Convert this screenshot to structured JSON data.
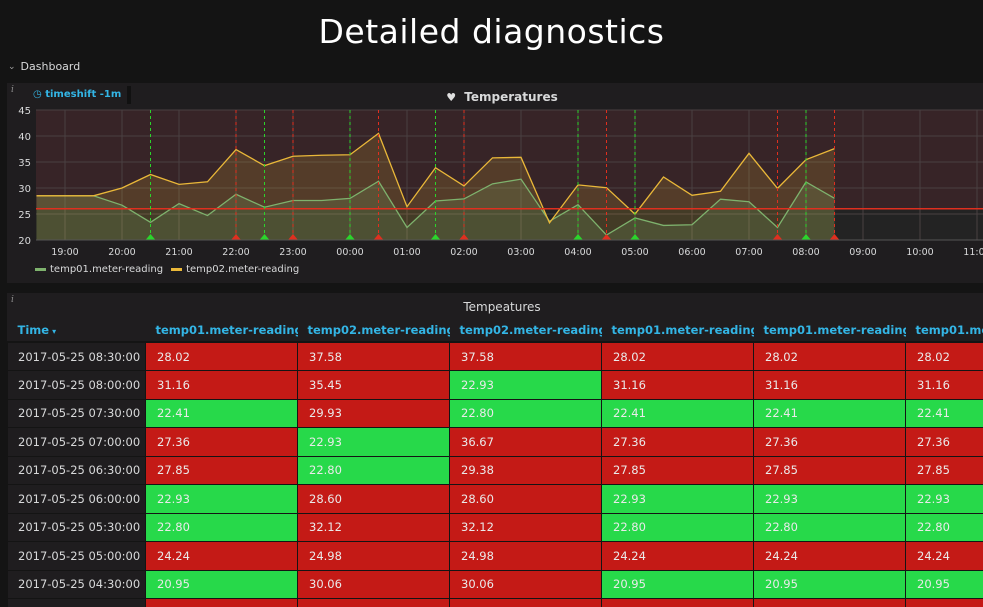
{
  "page_title": "Detailed diagnostics",
  "row": {
    "label": "Dashboard",
    "collapsed_icon": "chevron-down-icon"
  },
  "graph_panel": {
    "title": "Temperatures",
    "title_icon": "heart-icon",
    "info_icon": "i",
    "timeshift_label": "timeshift -1m",
    "timeshift_icon": "clock-icon"
  },
  "table_panel": {
    "title": "Tempeatures",
    "info_icon": "i",
    "columns": [
      "Time",
      "temp01.meter-reading",
      "temp02.meter-reading",
      "temp02.meter-reading",
      "temp01.meter-reading",
      "temp01.meter-reading",
      "temp01.meter-reading"
    ],
    "sort_indicator": "▾",
    "rows": [
      {
        "time": "2017-05-25 08:30:00",
        "cells": [
          {
            "v": "28.02",
            "s": "red"
          },
          {
            "v": "37.58",
            "s": "red"
          },
          {
            "v": "37.58",
            "s": "red"
          },
          {
            "v": "28.02",
            "s": "red"
          },
          {
            "v": "28.02",
            "s": "red"
          },
          {
            "v": "28.02",
            "s": "red"
          }
        ]
      },
      {
        "time": "2017-05-25 08:00:00",
        "cells": [
          {
            "v": "31.16",
            "s": "red"
          },
          {
            "v": "35.45",
            "s": "red"
          },
          {
            "v": "22.93",
            "s": "green"
          },
          {
            "v": "31.16",
            "s": "red"
          },
          {
            "v": "31.16",
            "s": "red"
          },
          {
            "v": "31.16",
            "s": "red"
          }
        ]
      },
      {
        "time": "2017-05-25 07:30:00",
        "cells": [
          {
            "v": "22.41",
            "s": "green"
          },
          {
            "v": "29.93",
            "s": "red"
          },
          {
            "v": "22.80",
            "s": "green"
          },
          {
            "v": "22.41",
            "s": "green"
          },
          {
            "v": "22.41",
            "s": "green"
          },
          {
            "v": "22.41",
            "s": "green"
          }
        ]
      },
      {
        "time": "2017-05-25 07:00:00",
        "cells": [
          {
            "v": "27.36",
            "s": "red"
          },
          {
            "v": "22.93",
            "s": "green"
          },
          {
            "v": "36.67",
            "s": "red"
          },
          {
            "v": "27.36",
            "s": "red"
          },
          {
            "v": "27.36",
            "s": "red"
          },
          {
            "v": "27.36",
            "s": "red"
          }
        ]
      },
      {
        "time": "2017-05-25 06:30:00",
        "cells": [
          {
            "v": "27.85",
            "s": "red"
          },
          {
            "v": "22.80",
            "s": "green"
          },
          {
            "v": "29.38",
            "s": "red"
          },
          {
            "v": "27.85",
            "s": "red"
          },
          {
            "v": "27.85",
            "s": "red"
          },
          {
            "v": "27.85",
            "s": "red"
          }
        ]
      },
      {
        "time": "2017-05-25 06:00:00",
        "cells": [
          {
            "v": "22.93",
            "s": "green"
          },
          {
            "v": "28.60",
            "s": "red"
          },
          {
            "v": "28.60",
            "s": "red"
          },
          {
            "v": "22.93",
            "s": "green"
          },
          {
            "v": "22.93",
            "s": "green"
          },
          {
            "v": "22.93",
            "s": "green"
          }
        ]
      },
      {
        "time": "2017-05-25 05:30:00",
        "cells": [
          {
            "v": "22.80",
            "s": "green"
          },
          {
            "v": "32.12",
            "s": "red"
          },
          {
            "v": "32.12",
            "s": "red"
          },
          {
            "v": "22.80",
            "s": "green"
          },
          {
            "v": "22.80",
            "s": "green"
          },
          {
            "v": "22.80",
            "s": "green"
          }
        ]
      },
      {
        "time": "2017-05-25 05:00:00",
        "cells": [
          {
            "v": "24.24",
            "s": "red"
          },
          {
            "v": "24.98",
            "s": "red"
          },
          {
            "v": "24.98",
            "s": "red"
          },
          {
            "v": "24.24",
            "s": "red"
          },
          {
            "v": "24.24",
            "s": "red"
          },
          {
            "v": "24.24",
            "s": "red"
          }
        ]
      },
      {
        "time": "2017-05-25 04:30:00",
        "cells": [
          {
            "v": "20.95",
            "s": "green"
          },
          {
            "v": "30.06",
            "s": "red"
          },
          {
            "v": "30.06",
            "s": "red"
          },
          {
            "v": "20.95",
            "s": "green"
          },
          {
            "v": "20.95",
            "s": "green"
          },
          {
            "v": "20.95",
            "s": "green"
          }
        ]
      },
      {
        "time": "",
        "cells": [
          {
            "v": "",
            "s": "red"
          },
          {
            "v": "",
            "s": "red"
          },
          {
            "v": "",
            "s": "red"
          },
          {
            "v": "",
            "s": "red"
          },
          {
            "v": "",
            "s": "red"
          },
          {
            "v": "",
            "s": "red"
          }
        ]
      }
    ]
  },
  "colors": {
    "temp01": "#7eb26d",
    "temp02": "#eab839",
    "threshold": "#e02f1f",
    "annotation_ok": "#2bd52b",
    "annotation_alert": "#e02f1f",
    "cell_red": "#c41a16",
    "cell_green": "#27d94a",
    "link_blue": "#33b5e5"
  },
  "chart_data": {
    "type": "line",
    "title": "Temperatures",
    "xlabel": "",
    "ylabel": "",
    "ylim": [
      20,
      45
    ],
    "y_ticks": [
      20,
      25,
      30,
      35,
      40,
      45
    ],
    "x_range": [
      "18:30",
      "11:30"
    ],
    "x_ticks": [
      "19:00",
      "20:00",
      "21:00",
      "22:00",
      "23:00",
      "00:00",
      "01:00",
      "02:00",
      "03:00",
      "04:00",
      "05:00",
      "06:00",
      "07:00",
      "08:00",
      "09:00",
      "10:00",
      "11:00"
    ],
    "x": [
      "18:30",
      "19:00",
      "19:30",
      "20:00",
      "20:30",
      "21:00",
      "21:30",
      "22:00",
      "22:30",
      "23:00",
      "23:30",
      "00:00",
      "00:30",
      "01:00",
      "01:30",
      "02:00",
      "02:30",
      "03:00",
      "03:30",
      "04:00",
      "04:30",
      "05:00",
      "05:30",
      "06:00",
      "06:30",
      "07:00",
      "07:30",
      "08:00",
      "08:30"
    ],
    "series": [
      {
        "name": "temp01.meter-reading",
        "values": [
          28.5,
          28.5,
          28.5,
          26.7,
          23.4,
          27.0,
          24.7,
          28.8,
          26.3,
          27.6,
          27.6,
          28.0,
          31.3,
          22.4,
          27.5,
          27.9,
          30.8,
          31.7,
          23.6,
          26.8,
          20.95,
          24.24,
          22.8,
          22.93,
          27.85,
          27.36,
          22.41,
          31.16,
          28.02
        ]
      },
      {
        "name": "temp02.meter-reading",
        "values": [
          28.5,
          28.5,
          28.5,
          30.0,
          32.6,
          30.7,
          31.2,
          37.4,
          34.3,
          36.1,
          36.3,
          36.4,
          40.5,
          26.4,
          33.9,
          30.4,
          35.8,
          35.9,
          23.3,
          30.6,
          30.06,
          24.98,
          32.12,
          28.6,
          29.38,
          36.67,
          29.93,
          35.45,
          37.58
        ]
      }
    ],
    "threshold": 26,
    "annotations": [
      {
        "time": "20:30",
        "type": "ok"
      },
      {
        "time": "22:00",
        "type": "alert"
      },
      {
        "time": "22:30",
        "type": "ok"
      },
      {
        "time": "23:00",
        "type": "alert"
      },
      {
        "time": "00:00",
        "type": "ok"
      },
      {
        "time": "00:30",
        "type": "alert"
      },
      {
        "time": "01:30",
        "type": "ok"
      },
      {
        "time": "02:00",
        "type": "alert"
      },
      {
        "time": "04:00",
        "type": "ok"
      },
      {
        "time": "04:30",
        "type": "alert"
      },
      {
        "time": "05:00",
        "type": "ok"
      },
      {
        "time": "07:30",
        "type": "alert"
      },
      {
        "time": "08:00",
        "type": "ok"
      },
      {
        "time": "08:30",
        "type": "alert"
      }
    ],
    "legend": [
      "temp01.meter-reading",
      "temp02.meter-reading"
    ],
    "legend_position": "bottom-left",
    "grid": true
  }
}
